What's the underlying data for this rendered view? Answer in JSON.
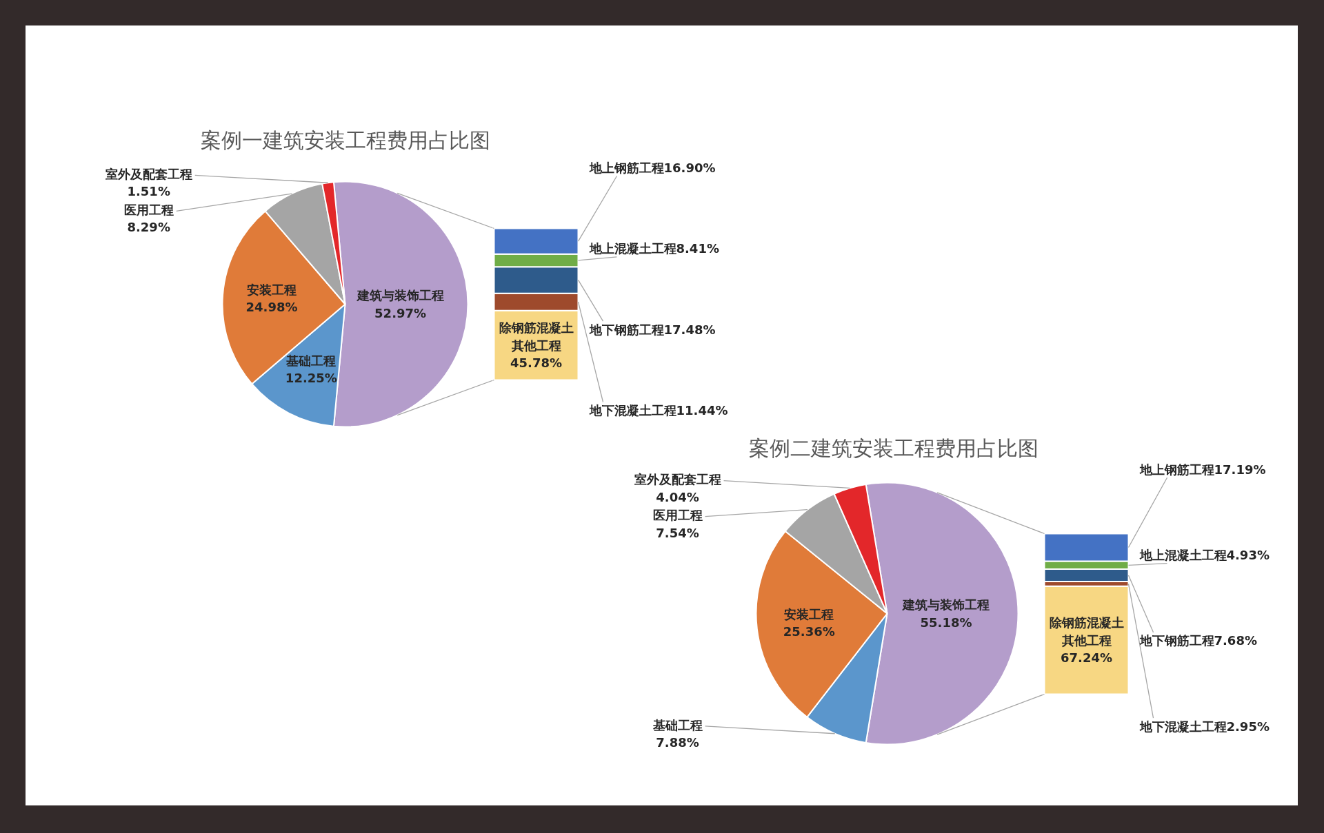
{
  "chart_data": [
    {
      "type": "pie",
      "title": "案例一建筑安装工程费用占比图",
      "categories": [
        "建筑与装饰工程",
        "基础工程",
        "安装工程",
        "医用工程",
        "室外及配套工程"
      ],
      "values": [
        52.97,
        12.25,
        24.98,
        8.29,
        1.51
      ],
      "value_labels": [
        "52.97%",
        "12.25%",
        "24.98%",
        "8.29%",
        "1.51%"
      ],
      "colors": [
        "#b49dcb",
        "#5b96cc",
        "#e07b39",
        "#a5a5a5",
        "#e3272a"
      ]
    },
    {
      "type": "bar",
      "stacked": true,
      "categories": [
        null
      ],
      "series": [
        {
          "name": "除钢筋混凝土其他工程",
          "color": "#f7d783",
          "values": [
            45.78
          ],
          "value_labels": [
            "45.78%"
          ]
        },
        {
          "name": "地下混凝土工程",
          "color": "#9e4a2c",
          "values": [
            11.44
          ],
          "value_labels": [
            "11.44%"
          ]
        },
        {
          "name": "地下钢筋工程",
          "color": "#2e5b8b",
          "values": [
            17.48
          ],
          "value_labels": [
            "17.48%"
          ]
        },
        {
          "name": "地上混凝土工程",
          "color": "#70ad47",
          "values": [
            8.41
          ],
          "value_labels": [
            "8.41%"
          ]
        },
        {
          "name": "地上钢筋工程",
          "color": "#4472c4",
          "values": [
            16.9
          ],
          "value_labels": [
            "16.90%"
          ]
        }
      ]
    },
    {
      "type": "pie",
      "title": "案例二建筑安装工程费用占比图",
      "categories": [
        "建筑与装饰工程",
        "基础工程",
        "安装工程",
        "医用工程",
        "室外及配套工程"
      ],
      "values": [
        55.18,
        7.88,
        25.36,
        7.54,
        4.04
      ],
      "value_labels": [
        "55.18%",
        "7.88%",
        "25.36%",
        "7.54%",
        "4.04%"
      ],
      "colors": [
        "#b49dcb",
        "#5b96cc",
        "#e07b39",
        "#a5a5a5",
        "#e3272a"
      ]
    },
    {
      "type": "bar",
      "stacked": true,
      "categories": [
        null
      ],
      "series": [
        {
          "name": "除钢筋混凝土其他工程",
          "color": "#f7d783",
          "values": [
            67.24
          ],
          "value_labels": [
            "67.24%"
          ]
        },
        {
          "name": "地下混凝土工程",
          "color": "#9e4a2c",
          "values": [
            2.95
          ],
          "value_labels": [
            "2.95%"
          ]
        },
        {
          "name": "地下钢筋工程",
          "color": "#2e5b8b",
          "values": [
            7.68
          ],
          "value_labels": [
            "7.68%"
          ]
        },
        {
          "name": "地上混凝土工程",
          "color": "#70ad47",
          "values": [
            4.93
          ],
          "value_labels": [
            "4.93%"
          ]
        },
        {
          "name": "地上钢筋工程",
          "color": "#4472c4",
          "values": [
            17.19
          ],
          "value_labels": [
            "17.19%"
          ]
        }
      ]
    }
  ]
}
